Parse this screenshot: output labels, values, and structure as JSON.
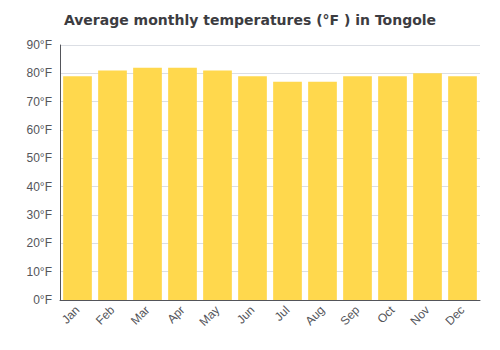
{
  "chart_data": {
    "type": "bar",
    "title": "Average monthly temperatures (°F ) in Tongole",
    "categories": [
      "Jan",
      "Feb",
      "Mar",
      "Apr",
      "May",
      "Jun",
      "Jul",
      "Aug",
      "Sep",
      "Oct",
      "Nov",
      "Dec"
    ],
    "values": [
      79,
      81,
      82,
      82,
      81,
      79,
      77,
      77,
      79,
      79,
      80,
      79
    ],
    "color": "#FFD84D",
    "ylim": [
      0,
      90
    ],
    "yticks": [
      {
        "value": 0,
        "label": "0°F"
      },
      {
        "value": 10,
        "label": "10°F"
      },
      {
        "value": 20,
        "label": "20°F"
      },
      {
        "value": 30,
        "label": "30°F"
      },
      {
        "value": 40,
        "label": "40°F"
      },
      {
        "value": 50,
        "label": "50°F"
      },
      {
        "value": 60,
        "label": "60°F"
      },
      {
        "value": 70,
        "label": "70°F"
      },
      {
        "value": 80,
        "label": "80°F"
      },
      {
        "value": 90,
        "label": "90°F"
      }
    ],
    "grid": true
  }
}
